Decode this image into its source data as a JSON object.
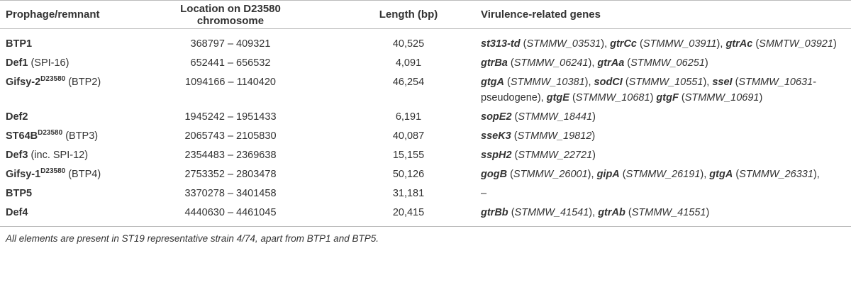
{
  "table": {
    "header": [
      "Prophage/remnant",
      "Location on D23580 chromosome",
      "Length (bp)",
      "Virulence-related genes"
    ],
    "rows": [
      {
        "name": [
          {
            "bold": "BTP1"
          }
        ],
        "location": "368797 – 409321",
        "length": "40,525",
        "genes": [
          {
            "bold_italic": "st313-td"
          },
          {
            "text": " ("
          },
          {
            "italic": "STMMW_03531"
          },
          {
            "text": "), "
          },
          {
            "bold_italic": "gtrCc"
          },
          {
            "text": " ("
          },
          {
            "italic": "STMMW_03911"
          },
          {
            "text": "), "
          },
          {
            "bold_italic": "gtrAc"
          },
          {
            "text": " ("
          },
          {
            "italic": "SMMTW_03921"
          },
          {
            "text": ")"
          }
        ]
      },
      {
        "name": [
          {
            "bold": "Def1"
          },
          {
            "text": " (SPI-16)"
          }
        ],
        "location": "652441 – 656532",
        "length": "4,091",
        "genes": [
          {
            "bold_italic": "gtrBa"
          },
          {
            "text": " ("
          },
          {
            "italic": "STMMW_06241"
          },
          {
            "text": "), "
          },
          {
            "bold_italic": "gtrAa"
          },
          {
            "text": " ("
          },
          {
            "italic": "STMMW_06251"
          },
          {
            "text": ")"
          }
        ]
      },
      {
        "name": [
          {
            "bold": "Gifsy-2"
          },
          {
            "bold_superscript": "D23580"
          },
          {
            "text": " (BTP2)"
          }
        ],
        "location": "1094166 – 1140420",
        "length": "46,254",
        "genes": [
          {
            "bold_italic": "gtgA"
          },
          {
            "text": " ("
          },
          {
            "italic": "STMMW_10381"
          },
          {
            "text": "), "
          },
          {
            "bold_italic": "sodCI"
          },
          {
            "text": " ("
          },
          {
            "italic": "STMMW_10551"
          },
          {
            "text": "), "
          },
          {
            "bold_italic": "sseI"
          },
          {
            "text": " ("
          },
          {
            "italic": "STMMW_10631"
          },
          {
            "text": "-pseudogene), "
          },
          {
            "bold_italic": "gtgE"
          },
          {
            "text": " ("
          },
          {
            "italic": "STMMW_10681"
          },
          {
            "text": ") "
          },
          {
            "bold_italic": "gtgF"
          },
          {
            "text": " ("
          },
          {
            "italic": "STMMW_10691"
          },
          {
            "text": ")"
          }
        ]
      },
      {
        "name": [
          {
            "bold": "Def2"
          }
        ],
        "location": "1945242 – 1951433",
        "length": "6,191",
        "genes": [
          {
            "bold_italic": "sopE2"
          },
          {
            "text": " ("
          },
          {
            "italic": "STMMW_18441"
          },
          {
            "text": ")"
          }
        ]
      },
      {
        "name": [
          {
            "bold": "ST64B"
          },
          {
            "bold_superscript": "D23580"
          },
          {
            "text": " (BTP3)"
          }
        ],
        "location": "2065743 – 2105830",
        "length": "40,087",
        "genes": [
          {
            "bold_italic": "sseK3"
          },
          {
            "text": " ("
          },
          {
            "italic": "STMMW_19812"
          },
          {
            "text": ")"
          }
        ]
      },
      {
        "name": [
          {
            "bold": "Def3"
          },
          {
            "text": " (inc. SPI-12)"
          }
        ],
        "location": "2354483 – 2369638",
        "length": "15,155",
        "genes": [
          {
            "bold_italic": "sspH2"
          },
          {
            "text": " ("
          },
          {
            "italic": "STMMW_22721"
          },
          {
            "text": ")"
          }
        ]
      },
      {
        "name": [
          {
            "bold": "Gifsy-1"
          },
          {
            "bold_superscript": "D23580"
          },
          {
            "text": " (BTP4)"
          }
        ],
        "location": "2753352 – 2803478",
        "length": "50,126",
        "genes": [
          {
            "bold_italic": "gogB"
          },
          {
            "text": " ("
          },
          {
            "italic": "STMMW_26001"
          },
          {
            "text": "), "
          },
          {
            "bold_italic": "gipA"
          },
          {
            "text": " ("
          },
          {
            "italic": "STMMW_26191"
          },
          {
            "text": "), "
          },
          {
            "bold_italic": "gtgA"
          },
          {
            "text": " ("
          },
          {
            "italic": "STMMW_26331"
          },
          {
            "text": "),"
          }
        ]
      },
      {
        "name": [
          {
            "bold": "BTP5"
          }
        ],
        "location": "3370278 – 3401458",
        "length": "31,181",
        "genes": [
          {
            "text": "–"
          }
        ]
      },
      {
        "name": [
          {
            "bold": "Def4"
          }
        ],
        "location": "4440630 – 4461045",
        "length": "20,415",
        "genes": [
          {
            "bold_italic": "gtrBb"
          },
          {
            "text": " ("
          },
          {
            "italic": "STMMW_41541"
          },
          {
            "text": "), "
          },
          {
            "bold_italic": "gtrAb"
          },
          {
            "text": " ("
          },
          {
            "italic": "STMMW_41551"
          },
          {
            "text": ")"
          }
        ]
      }
    ],
    "footnote": "All elements are present in ST19 representative strain 4/74, apart from BTP1 and BTP5."
  }
}
